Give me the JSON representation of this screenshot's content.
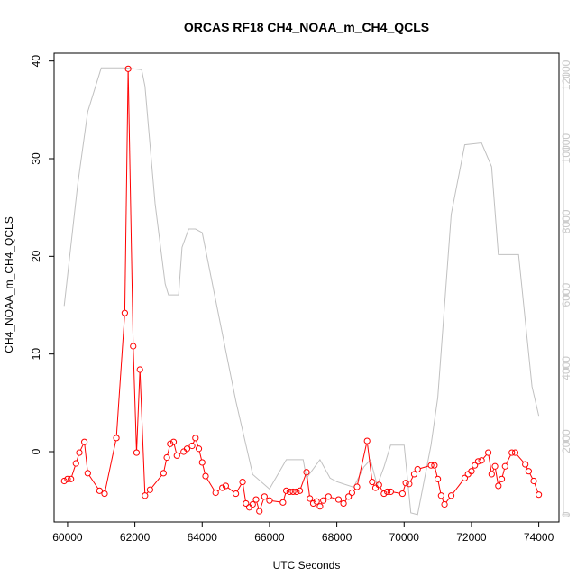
{
  "chart_data": {
    "type": "line",
    "title": "ORCAS RF18 CH4_NOAA_m_CH4_QCLS",
    "xlabel": "UTC Seconds",
    "ylabel": "CH4_NOAA_m_CH4_QCLS",
    "xlim": [
      59600,
      74600
    ],
    "ylim": [
      -7.2,
      40.8
    ],
    "y2lim": [
      -200,
      12600
    ],
    "x_ticks": [
      "60000",
      "62000",
      "64000",
      "66000",
      "68000",
      "70000",
      "72000",
      "74000"
    ],
    "y_ticks": [
      "0",
      "10",
      "20",
      "30",
      "40"
    ],
    "y2_ticks": [
      "0",
      "2000",
      "4000",
      "6000",
      "8000",
      "10000",
      "12000"
    ],
    "colors": {
      "primary": "#ff0000",
      "secondary": "#c0c0c0",
      "axis": "#000000",
      "axis2": "#c8c8c8"
    },
    "series": [
      {
        "axis": "left",
        "style": "line+markers",
        "x": [
          59900,
          60000,
          60100,
          60250,
          60350,
          60500,
          60600,
          60950,
          61100,
          61450,
          61700,
          61800,
          61950,
          62050,
          62150,
          62300,
          62450,
          62850,
          62950,
          63050,
          63150,
          63250,
          63450,
          63550,
          63700,
          63800,
          63900,
          64000,
          64100,
          64400,
          64600,
          64700,
          65000,
          65200,
          65300,
          65400,
          65500,
          65600,
          65700,
          65850,
          66000,
          66400,
          66500,
          66600,
          66700,
          66800,
          66900,
          67100,
          67200,
          67300,
          67400,
          67500,
          67600,
          67750,
          68050,
          68200,
          68350,
          68450,
          68600,
          68900,
          69050,
          69150,
          69250,
          69400,
          69500,
          69600,
          69950,
          70050,
          70150,
          70300,
          70400,
          70800,
          70900,
          71000,
          71100,
          71200,
          71400,
          71800,
          71900,
          72000,
          72100,
          72200,
          72300,
          72500,
          72600,
          72700,
          72800,
          72900,
          73000,
          73200,
          73300,
          73600,
          73700,
          73850,
          74000
        ],
        "y": [
          -3.0,
          -2.8,
          -2.8,
          -1.2,
          -0.1,
          1.0,
          -2.2,
          -4.0,
          -4.3,
          1.4,
          14.2,
          39.2,
          10.8,
          -0.1,
          8.4,
          -4.5,
          -3.9,
          -2.2,
          -0.6,
          0.8,
          1.0,
          -0.4,
          0.0,
          0.3,
          0.6,
          1.4,
          0.3,
          -1.1,
          -2.5,
          -4.2,
          -3.7,
          -3.5,
          -4.3,
          -3.1,
          -5.3,
          -5.7,
          -5.4,
          -4.9,
          -6.1,
          -4.6,
          -5.0,
          -5.2,
          -4.0,
          -4.1,
          -4.1,
          -4.1,
          -4.0,
          -2.1,
          -4.8,
          -5.3,
          -5.1,
          -5.6,
          -5.0,
          -4.6,
          -4.9,
          -5.3,
          -4.6,
          -4.2,
          -3.6,
          1.1,
          -3.1,
          -3.7,
          -3.4,
          -4.3,
          -4.1,
          -4.1,
          -4.3,
          -3.2,
          -3.3,
          -2.3,
          -1.8,
          -1.4,
          -1.4,
          -2.8,
          -4.5,
          -5.4,
          -4.5,
          -2.7,
          -2.3,
          -2.0,
          -1.4,
          -1.0,
          -0.9,
          -0.1,
          -2.3,
          -1.5,
          -3.5,
          -2.8,
          -1.5,
          -0.1,
          -0.1,
          -1.3,
          -2.0,
          -3.0,
          -4.4
        ]
      },
      {
        "axis": "right",
        "style": "line",
        "x": [
          59900,
          60300,
          60600,
          61000,
          61200,
          61700,
          62200,
          62300,
          62600,
          62900,
          63000,
          63300,
          63400,
          63600,
          63800,
          64000,
          64500,
          65000,
          65500,
          66000,
          66500,
          66900,
          67000,
          67100,
          67500,
          67800,
          68000,
          68500,
          68800,
          68900,
          69000,
          69200,
          69400,
          69600,
          70000,
          70200,
          70400,
          70800,
          71000,
          71400,
          71800,
          72300,
          72600,
          72800,
          73000,
          73400,
          73800,
          74000
        ],
        "y": [
          5700,
          9000,
          11000,
          12200,
          12200,
          12200,
          12150,
          11700,
          8500,
          6300,
          6000,
          6000,
          7300,
          7800,
          7800,
          7700,
          5400,
          3100,
          1100,
          700,
          1500,
          1500,
          1500,
          1000,
          1500,
          1000,
          900,
          750,
          1300,
          1400,
          1500,
          800,
          1300,
          1900,
          1900,
          50,
          0,
          1900,
          3200,
          8200,
          10100,
          10150,
          9500,
          7100,
          7100,
          7100,
          3500,
          2700
        ]
      }
    ]
  }
}
